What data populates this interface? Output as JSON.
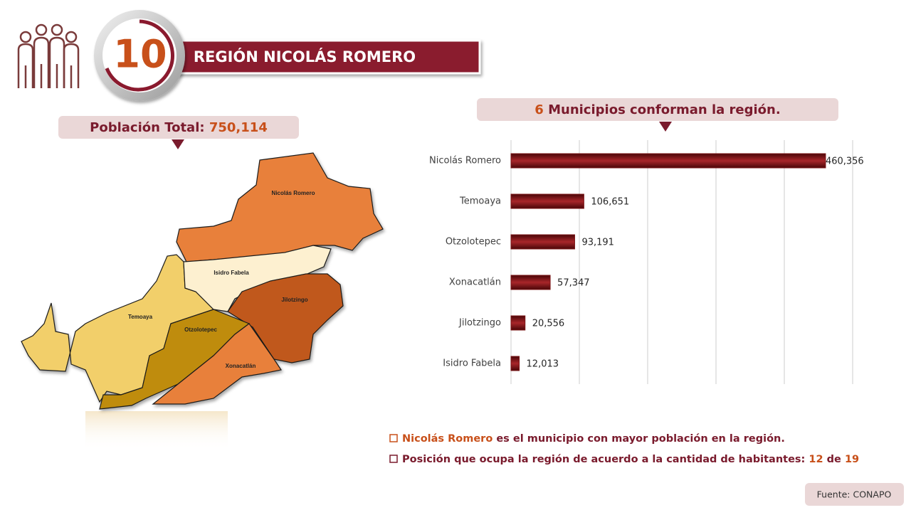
{
  "header": {
    "number": "10",
    "title": "REGIÓN NICOLÁS ROMERO"
  },
  "population": {
    "label": "Población Total:",
    "value": "750,114"
  },
  "municipalities": {
    "count": "6",
    "text": "Municipios conforman la región."
  },
  "map": {
    "regions": [
      {
        "label": "Nicolás Romero"
      },
      {
        "label": "Isidro Fabela"
      },
      {
        "label": "Jilotzingo"
      },
      {
        "label": "Temoaya"
      },
      {
        "label": "Otzolotepec"
      },
      {
        "label": "Xonacatlán"
      }
    ]
  },
  "notes": [
    {
      "highlight": "Nicolás Romero",
      "text": "es el municipio con mayor población en la región."
    },
    {
      "text": "Posición que ocupa la región de acuerdo a la cantidad de habitantes:",
      "rank": "12",
      "of": "de",
      "total": "19"
    }
  ],
  "source": "Fuente: CONAPO",
  "chart_data": {
    "type": "bar",
    "orientation": "horizontal",
    "categories": [
      "Nicolás Romero",
      "Temoaya",
      "Otzolotepec",
      "Xonacatlán",
      "Jilotzingo",
      "Isidro Fabela"
    ],
    "values": [
      460356,
      106651,
      93191,
      57347,
      20556,
      12013
    ],
    "value_labels": [
      "460,356",
      "106,651",
      "93,191",
      "57,347",
      "20,556",
      "12,013"
    ],
    "color": "#7b1416",
    "xlim": [
      0,
      500000
    ],
    "xticks": [
      0,
      100000,
      200000,
      300000,
      400000,
      500000
    ],
    "grid": true
  }
}
